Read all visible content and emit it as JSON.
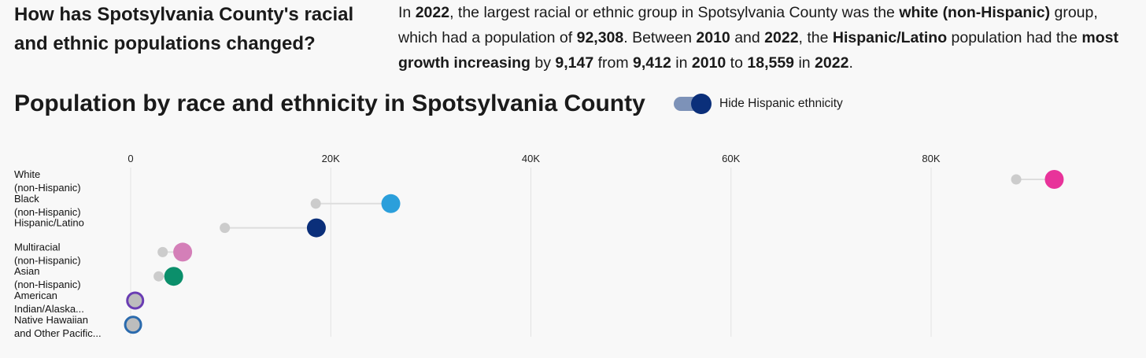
{
  "header": {
    "question": "How has Spotsylvania County's racial and ethnic populations changed?",
    "summary_parts": [
      {
        "t": "In ",
        "b": false
      },
      {
        "t": "2022",
        "b": true
      },
      {
        "t": ", the largest racial or ethnic group in Spotsylvania County was the ",
        "b": false
      },
      {
        "t": "white (non-Hispanic)",
        "b": true
      },
      {
        "t": " group, which had a population of ",
        "b": false
      },
      {
        "t": "92,308",
        "b": true
      },
      {
        "t": ". Between ",
        "b": false
      },
      {
        "t": "2010",
        "b": true
      },
      {
        "t": " and ",
        "b": false
      },
      {
        "t": "2022",
        "b": true
      },
      {
        "t": ", the ",
        "b": false
      },
      {
        "t": "Hispanic/Latino",
        "b": true
      },
      {
        "t": " population had the ",
        "b": false
      },
      {
        "t": "most growth increasing",
        "b": true
      },
      {
        "t": " by ",
        "b": false
      },
      {
        "t": "9,147",
        "b": true
      },
      {
        "t": " from ",
        "b": false
      },
      {
        "t": "9,412",
        "b": true
      },
      {
        "t": " in ",
        "b": false
      },
      {
        "t": "2010",
        "b": true
      },
      {
        "t": " to ",
        "b": false
      },
      {
        "t": "18,559",
        "b": true
      },
      {
        "t": " in ",
        "b": false
      },
      {
        "t": "2022",
        "b": true
      },
      {
        "t": ".",
        "b": false
      }
    ]
  },
  "toggle": {
    "label": "Hide Hispanic ethnicity",
    "on": true
  },
  "chart_data": {
    "type": "dot-plot",
    "title": "Population by race and ethnicity in Spotsylvania County",
    "xlim": [
      0,
      100000
    ],
    "xticks": [
      0,
      20000,
      40000,
      60000,
      80000
    ],
    "xtick_labels": [
      "0",
      "20K",
      "40K",
      "60K",
      "80K"
    ],
    "grid": true,
    "categories": [
      {
        "label_lines": [
          "White",
          "(non-Hispanic)"
        ],
        "start": 88500,
        "end": 92308,
        "color": "#e8339a",
        "hollow": false
      },
      {
        "label_lines": [
          "Black",
          "(non-Hispanic)"
        ],
        "start": 18500,
        "end": 26000,
        "color": "#2b9fdb",
        "hollow": false
      },
      {
        "label_lines": [
          "Hispanic/Latino"
        ],
        "start": 9412,
        "end": 18559,
        "color": "#0b2f7a",
        "hollow": false
      },
      {
        "label_lines": [
          "Multiracial",
          "(non-Hispanic)"
        ],
        "start": 3200,
        "end": 5200,
        "color": "#d47fb8",
        "hollow": false
      },
      {
        "label_lines": [
          "Asian",
          "(non-Hispanic)"
        ],
        "start": 2800,
        "end": 4300,
        "color": "#0b8f6b",
        "hollow": false
      },
      {
        "label_lines": [
          "American",
          "Indian/Alaska..."
        ],
        "start": 400,
        "end": 450,
        "color": "#6a3db3",
        "hollow": true
      },
      {
        "label_lines": [
          "Native Hawaiian",
          "and Other Pacific..."
        ],
        "start": 200,
        "end": 240,
        "color": "#2a6aad",
        "hollow": true
      }
    ],
    "start_marker_color": "#cccccc",
    "connector_color": "#dddddd"
  }
}
